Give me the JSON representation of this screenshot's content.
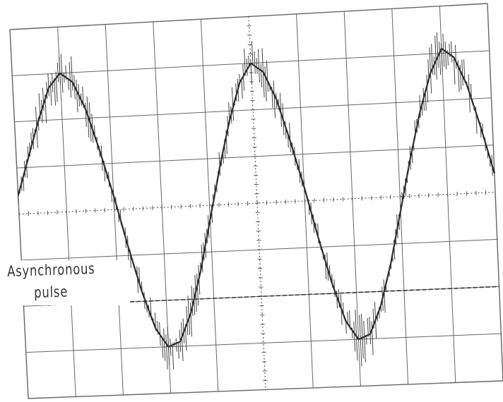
{
  "chart_data": {
    "type": "line",
    "title": "",
    "xlabel": "",
    "ylabel": "",
    "grid": true,
    "xlim": [
      0,
      10
    ],
    "ylim": [
      -4,
      4
    ],
    "series": [
      {
        "x": [
          0.0,
          0.25,
          0.5,
          0.75,
          1.0,
          1.25,
          1.5,
          1.75,
          2.0,
          2.25,
          2.5,
          2.75,
          3.0,
          3.25,
          3.5,
          3.75,
          4.0,
          4.25,
          4.5,
          4.75,
          5.0,
          5.25,
          5.5,
          5.75,
          6.0,
          6.25,
          6.5,
          6.75,
          7.0,
          7.25,
          7.5,
          7.75,
          8.0,
          8.25,
          8.5,
          8.75,
          9.0,
          9.25,
          9.5,
          9.75,
          10.0
        ],
        "values": [
          0.4,
          1.2,
          2.0,
          2.7,
          3.0,
          2.8,
          2.2,
          1.3,
          0.3,
          -0.8,
          -1.8,
          -2.6,
          -3.0,
          -2.9,
          -2.3,
          -1.4,
          -0.3,
          0.8,
          1.8,
          2.6,
          3.0,
          2.8,
          2.2,
          1.3,
          0.3,
          -0.8,
          -1.8,
          -2.6,
          -3.0,
          -2.9,
          -2.3,
          -1.4,
          -0.3,
          0.8,
          1.8,
          2.6,
          3.1,
          2.9,
          2.3,
          1.4,
          0.4
        ]
      }
    ],
    "annotation": {
      "line1": "Asynchronous",
      "line2": "pulse"
    }
  },
  "header": {
    "line1": "———",
    "line2": "——"
  }
}
